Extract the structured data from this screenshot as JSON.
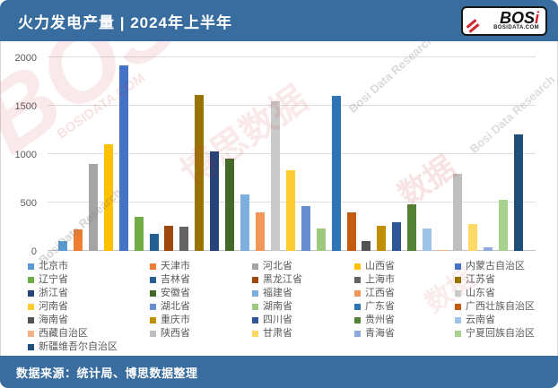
{
  "header": {
    "title": "火力发电产量 | 2024年上半年",
    "logo": {
      "text": "BOS",
      "text_accent": "i",
      "subtext": "BOSIDATA.COM"
    }
  },
  "footer": {
    "source_label": "数据来源：统计局、博思数据整理"
  },
  "watermarks": {
    "w1": "BOSI",
    "w2": "博思数据",
    "w3": "数据",
    "w4": "BosiData Research",
    "w5": "Bosi Data Research",
    "w6": "BOSIDATA.COM",
    "w7": "数据",
    "w8": "Bosi Data Research"
  },
  "chart_data": {
    "type": "bar",
    "title": "火力发电产量 | 2024年上半年",
    "xlabel": "",
    "ylabel": "",
    "ylim": [
      0,
      2000
    ],
    "yticks": [
      0,
      500,
      1000,
      1500,
      2000
    ],
    "grid": true,
    "legend_position": "bottom",
    "series": [
      {
        "name": "北京市",
        "value": 100,
        "color": "#5B9BD5"
      },
      {
        "name": "天津市",
        "value": 220,
        "color": "#ED7D31"
      },
      {
        "name": "河北省",
        "value": 900,
        "color": "#A5A5A5"
      },
      {
        "name": "山西省",
        "value": 1100,
        "color": "#FFC000"
      },
      {
        "name": "内蒙古自治区",
        "value": 1920,
        "color": "#4472C4"
      },
      {
        "name": "辽宁省",
        "value": 350,
        "color": "#70AD47"
      },
      {
        "name": "吉林省",
        "value": 180,
        "color": "#255E91"
      },
      {
        "name": "黑龙江省",
        "value": 260,
        "color": "#9E480E"
      },
      {
        "name": "上海市",
        "value": 250,
        "color": "#636363"
      },
      {
        "name": "江苏省",
        "value": 1610,
        "color": "#997300"
      },
      {
        "name": "浙江省",
        "value": 1030,
        "color": "#264478"
      },
      {
        "name": "安徽省",
        "value": 950,
        "color": "#43682B"
      },
      {
        "name": "福建省",
        "value": 580,
        "color": "#7CAFDD"
      },
      {
        "name": "江西省",
        "value": 400,
        "color": "#F1975A"
      },
      {
        "name": "山东省",
        "value": 1550,
        "color": "#C9C9C9"
      },
      {
        "name": "河南省",
        "value": 830,
        "color": "#FFCD33"
      },
      {
        "name": "湖北省",
        "value": 460,
        "color": "#698ED0"
      },
      {
        "name": "湖南省",
        "value": 230,
        "color": "#9CC97E"
      },
      {
        "name": "广东省",
        "value": 1600,
        "color": "#2E75B6"
      },
      {
        "name": "广西壮族自治区",
        "value": 400,
        "color": "#C55A11"
      },
      {
        "name": "海南省",
        "value": 100,
        "color": "#525252"
      },
      {
        "name": "重庆市",
        "value": 260,
        "color": "#BF8F00"
      },
      {
        "name": "四川省",
        "value": 300,
        "color": "#2F5597"
      },
      {
        "name": "贵州省",
        "value": 480,
        "color": "#538135"
      },
      {
        "name": "云南省",
        "value": 230,
        "color": "#9DC3E6"
      },
      {
        "name": "西藏自治区",
        "value": 10,
        "color": "#F4B183"
      },
      {
        "name": "陕西省",
        "value": 800,
        "color": "#BFBFBF"
      },
      {
        "name": "甘肃省",
        "value": 280,
        "color": "#FFD966"
      },
      {
        "name": "青海省",
        "value": 40,
        "color": "#8FAADC"
      },
      {
        "name": "宁夏回族自治区",
        "value": 530,
        "color": "#A9D18E"
      },
      {
        "name": "新疆维吾尔自治区",
        "value": 1200,
        "color": "#1F4E79"
      }
    ]
  }
}
